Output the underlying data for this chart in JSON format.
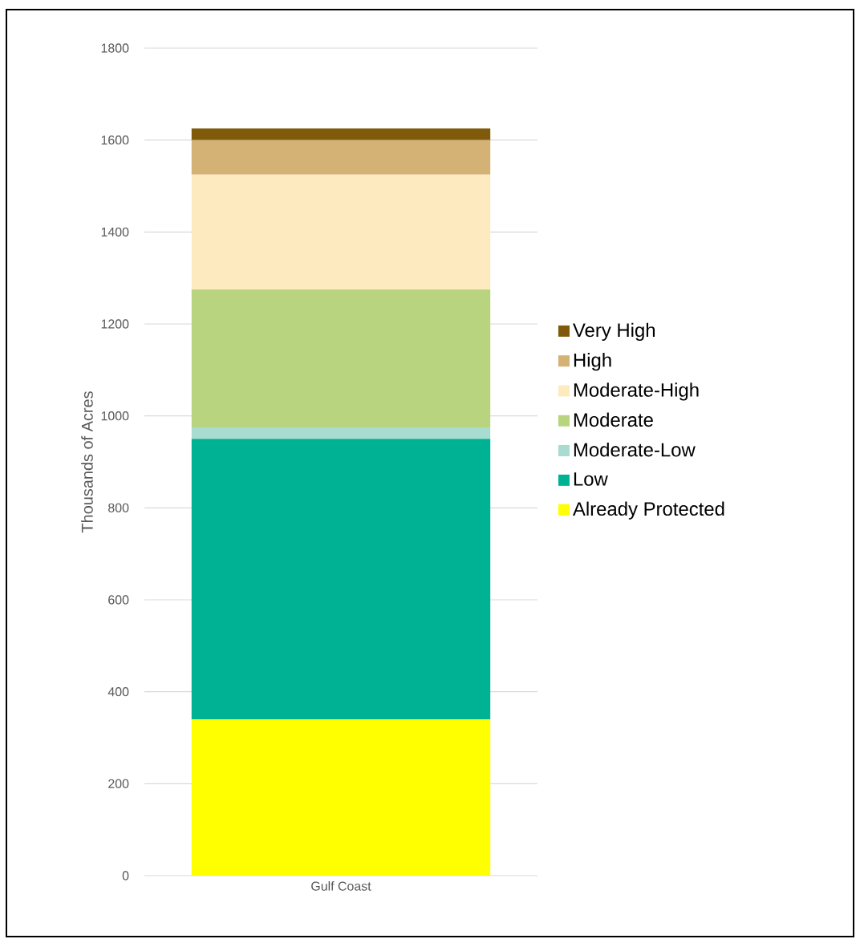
{
  "chart_data": {
    "type": "bar",
    "stacked": true,
    "ylabel": "Thousands of Acres",
    "categories": [
      "Gulf Coast"
    ],
    "series": [
      {
        "name": "Already Protected",
        "color": "#ffff00",
        "values": [
          340
        ]
      },
      {
        "name": "Low",
        "color": "#00b294",
        "values": [
          610
        ]
      },
      {
        "name": "Moderate-Low",
        "color": "#a8dcd0",
        "values": [
          25
        ]
      },
      {
        "name": "Moderate",
        "color": "#b8d47e",
        "values": [
          300
        ]
      },
      {
        "name": "Moderate-High",
        "color": "#fdebbf",
        "values": [
          250
        ]
      },
      {
        "name": "High",
        "color": "#d4b276",
        "values": [
          75
        ]
      },
      {
        "name": "Very High",
        "color": "#7f5a0a",
        "values": [
          25
        ]
      }
    ],
    "ylim": [
      0,
      1800
    ],
    "yticks": [
      0,
      200,
      400,
      600,
      800,
      1000,
      1200,
      1400,
      1600,
      1800
    ],
    "grid": "y",
    "legend": "right"
  }
}
